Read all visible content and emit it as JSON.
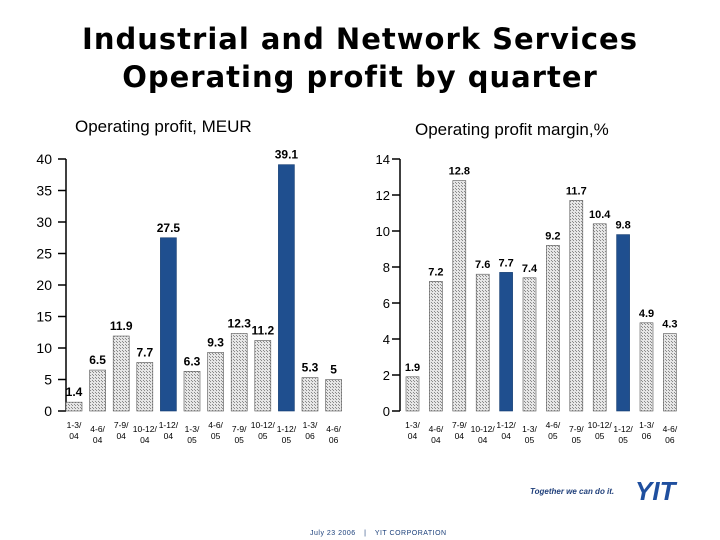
{
  "title_line1": "Industrial and Network Services",
  "title_line2": "Operating profit by quarter",
  "footer": {
    "date": "July 23 2006",
    "separator": "|",
    "company": "YIT CORPORATION"
  },
  "logo": {
    "slogan": "Together we can do it.",
    "name": "YIT"
  },
  "colors": {
    "highlight": "#1f4f8f",
    "hatched": "#dcdcdc",
    "text": "#000000"
  },
  "chart_data": [
    {
      "type": "bar",
      "title": "Operating profit, MEUR",
      "categories": [
        "1-3/ 04",
        "4-6/ 04",
        "7-9/ 04",
        "10-12/ 04",
        "1-12/ 04",
        "1-3/ 05",
        "4-6/ 05",
        "7-9/ 05",
        "10-12/ 05",
        "1-12/ 05",
        "1-3/ 06",
        "4-6/ 06"
      ],
      "values": [
        1.4,
        6.5,
        11.9,
        7.7,
        27.5,
        6.3,
        9.3,
        12.3,
        11.2,
        39.1,
        5.3,
        5.0
      ],
      "highlighted": [
        false,
        false,
        false,
        false,
        true,
        false,
        false,
        false,
        false,
        true,
        false,
        false
      ],
      "ylim": [
        0,
        40
      ],
      "yticks": [
        0,
        5,
        10,
        15,
        20,
        25,
        30,
        35,
        40
      ],
      "grid": false
    },
    {
      "type": "bar",
      "title": "Operating profit margin,%",
      "categories": [
        "1-3/ 04",
        "4-6/ 04",
        "7-9/ 04",
        "10-12/ 04",
        "1-12/ 04",
        "1-3/ 05",
        "4-6/ 05",
        "7-9/ 05",
        "10-12/ 05",
        "1-12/ 05",
        "1-3/ 06",
        "4-6/ 06"
      ],
      "values": [
        1.9,
        7.2,
        12.8,
        7.6,
        7.7,
        7.4,
        9.2,
        11.7,
        10.4,
        9.8,
        4.9,
        4.3
      ],
      "highlighted": [
        false,
        false,
        false,
        false,
        true,
        false,
        false,
        false,
        false,
        true,
        false,
        false
      ],
      "ylim": [
        0,
        14
      ],
      "yticks": [
        0,
        2,
        4,
        6,
        8,
        10,
        12,
        14
      ],
      "grid": false
    }
  ]
}
